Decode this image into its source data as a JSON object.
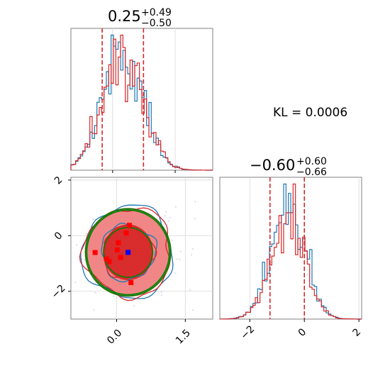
{
  "chart_data": [
    {
      "type": "histogram",
      "panel": "top-left",
      "param_index": 0,
      "title_value": "0.25",
      "title_plus": "+0.49",
      "title_minus": "−0.50",
      "xlim": [
        -1.0,
        2.4
      ],
      "xticks": [
        0.0,
        1.5
      ],
      "quantile_lines": [
        -0.25,
        0.74
      ],
      "grid": true,
      "series": [
        {
          "name": "",
          "color": "#1f77b4"
        },
        {
          "name": "",
          "color": "#d62728"
        }
      ]
    },
    {
      "type": "histogram",
      "panel": "bottom-right",
      "param_index": 1,
      "title_value": "−0.60",
      "title_plus": "+0.60",
      "title_minus": "−0.66",
      "xlim": [
        -3.1,
        2.1
      ],
      "xticks": [
        -2,
        0,
        2
      ],
      "xtick_labels": [
        "−2",
        "0",
        "2"
      ],
      "quantile_lines": [
        -1.26,
        0.0
      ],
      "grid": true,
      "series": [
        {
          "name": "",
          "color": "#1f77b4"
        },
        {
          "name": "",
          "color": "#d62728"
        }
      ]
    },
    {
      "type": "contour",
      "panel": "bottom-left",
      "xlim": [
        -1.0,
        2.1
      ],
      "ylim": [
        -3.0,
        2.1
      ],
      "xticks": [
        0.0,
        1.5
      ],
      "xtick_labels": [
        "0.0",
        "1.5"
      ],
      "yticks": [
        -2,
        0,
        2
      ],
      "ytick_labels": [
        "−2",
        "0",
        "2"
      ],
      "center": [
        0.25,
        -0.6
      ],
      "truth_marker": {
        "x": 0.25,
        "y": -0.6,
        "color": "#0000ff"
      },
      "levels": [
        {
          "color": "#f08080",
          "rx": 0.95,
          "ry": 1.6
        },
        {
          "color": "#d62728",
          "rx": 0.55,
          "ry": 1.0
        }
      ],
      "grid": true
    }
  ],
  "annotations": {
    "kl_text": "KL = 0.0006"
  }
}
